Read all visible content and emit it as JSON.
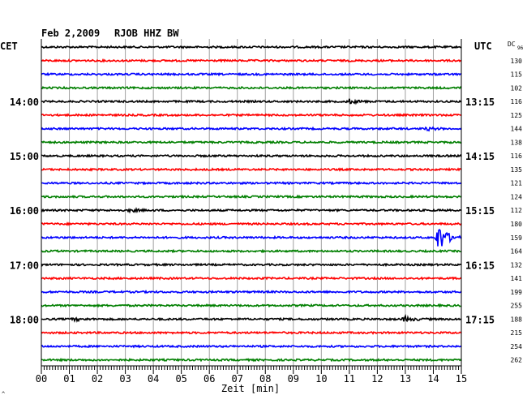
{
  "header": {
    "date": "Feb 2,2009",
    "station": "RJOB HHZ BW",
    "left_tz": "CET",
    "right_tz": "UTC",
    "dc_label": "DC",
    "dc_sub": "96"
  },
  "colors": {
    "trace_cycle": [
      "#000000",
      "#ff0000",
      "#0000ff",
      "#007f00"
    ],
    "grid": "#a0a0a0",
    "border": "#000000"
  },
  "chart_data": {
    "type": "line",
    "title": "Feb 2,2009   RJOB HHZ BW",
    "xlabel": "Zeit [min]",
    "ylabel": "",
    "xlim": [
      0,
      15
    ],
    "x_ticks": [
      "00",
      "01",
      "02",
      "03",
      "04",
      "05",
      "06",
      "07",
      "08",
      "09",
      "10",
      "11",
      "12",
      "13",
      "14",
      "15"
    ],
    "grid": true,
    "rows_per_hour": 4,
    "cet_labels": [
      "14:00",
      "15:00",
      "16:00",
      "17:00",
      "18:00"
    ],
    "utc_labels": [
      "13:15",
      "14:15",
      "15:15",
      "16:15",
      "17:15"
    ],
    "dc_values": [
      "130",
      "115",
      "102",
      "116",
      "125",
      "144",
      "138",
      "116",
      "135",
      "121",
      "124",
      "112",
      "180",
      "159",
      "164",
      "132",
      "141",
      "199",
      "255",
      "188",
      "215",
      "254",
      "262"
    ],
    "trace_count": 24,
    "events": [
      {
        "row": 4,
        "minute": 11.0,
        "strength": 0.5
      },
      {
        "row": 6,
        "minute": 13.8,
        "strength": 0.3
      },
      {
        "row": 12,
        "minute": 3.2,
        "strength": 0.3
      },
      {
        "row": 14,
        "minute": 14.2,
        "strength": 3.5
      },
      {
        "row": 20,
        "minute": 13.0,
        "strength": 0.6
      },
      {
        "row": 20,
        "minute": 1.2,
        "strength": 0.3
      }
    ]
  }
}
